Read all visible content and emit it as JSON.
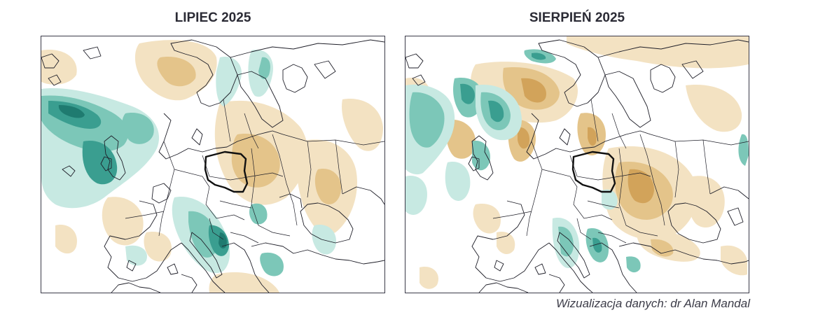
{
  "panels": [
    {
      "title": "LIPIEC 2025"
    },
    {
      "title": "SIERPIEŃ 2025"
    }
  ],
  "credit": "Wizualizacja danych: dr Alan Mandal",
  "colors": {
    "wet_light": "#c7e9e2",
    "wet_mid": "#7cc7b8",
    "wet_strong": "#3a9e90",
    "wet_max": "#1f7b70",
    "dry_light": "#f3e2c2",
    "dry_mid": "#e4c48a",
    "dry_strong": "#d2a35a",
    "dry_max": "#b98536",
    "borders": "#1e1e28",
    "poland_border": "#111111"
  }
}
